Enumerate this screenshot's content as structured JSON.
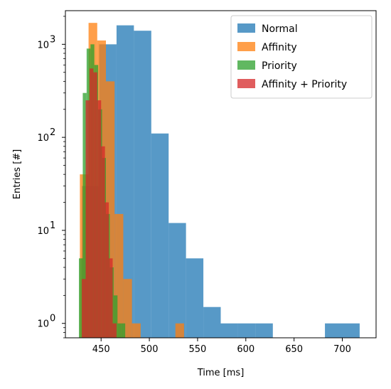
{
  "chart_data": {
    "type": "histogram",
    "xlabel": "Time [ms]",
    "ylabel": "Entries [#]",
    "yscale": "log",
    "xlim": [
      413,
      735
    ],
    "ylim": [
      0.7,
      2300
    ],
    "x_ticks": [
      {
        "value": 450,
        "label": "450"
      },
      {
        "value": 500,
        "label": "500"
      },
      {
        "value": 550,
        "label": "550"
      },
      {
        "value": 600,
        "label": "600"
      },
      {
        "value": 650,
        "label": "650"
      },
      {
        "value": 700,
        "label": "700"
      }
    ],
    "y_ticks": [
      {
        "value": 1,
        "base": "10",
        "exp": "0"
      },
      {
        "value": 10,
        "base": "10",
        "exp": "1"
      },
      {
        "value": 100,
        "base": "10",
        "exp": "2"
      },
      {
        "value": 1000,
        "base": "10",
        "exp": "3"
      }
    ],
    "legend_position": "top-right",
    "series": [
      {
        "name": "Normal",
        "color": "#1f77b4",
        "opacity": 0.75,
        "edges": [
          430,
          448,
          466,
          484,
          502,
          520,
          538,
          556,
          574,
          592,
          610,
          628,
          646,
          664,
          682,
          700,
          718
        ],
        "counts": [
          30,
          1000,
          1600,
          1400,
          110,
          12,
          5,
          1.5,
          1,
          1,
          1,
          0,
          0,
          0,
          1,
          1
        ]
      },
      {
        "name": "Affinity",
        "color": "#ff7f0e",
        "opacity": 0.75,
        "edges": [
          428,
          437,
          446,
          455,
          464,
          473,
          482,
          491,
          500,
          509,
          518,
          527,
          536
        ],
        "counts": [
          40,
          1700,
          1100,
          400,
          15,
          3,
          1,
          0,
          0,
          0,
          0,
          1
        ]
      },
      {
        "name": "Priority",
        "color": "#2ca02c",
        "opacity": 0.75,
        "edges": [
          427,
          431,
          435,
          439,
          443,
          447,
          451,
          455,
          459,
          463,
          467,
          471,
          475
        ],
        "counts": [
          5,
          300,
          900,
          1000,
          600,
          200,
          60,
          15,
          4,
          2,
          1,
          1
        ]
      },
      {
        "name": "Affinity + Priority",
        "color": "#d62728",
        "opacity": 0.75,
        "edges": [
          430,
          434,
          438,
          442,
          446,
          450,
          454,
          458,
          462,
          466
        ],
        "counts": [
          3,
          250,
          550,
          500,
          250,
          80,
          20,
          5,
          1
        ]
      }
    ]
  }
}
